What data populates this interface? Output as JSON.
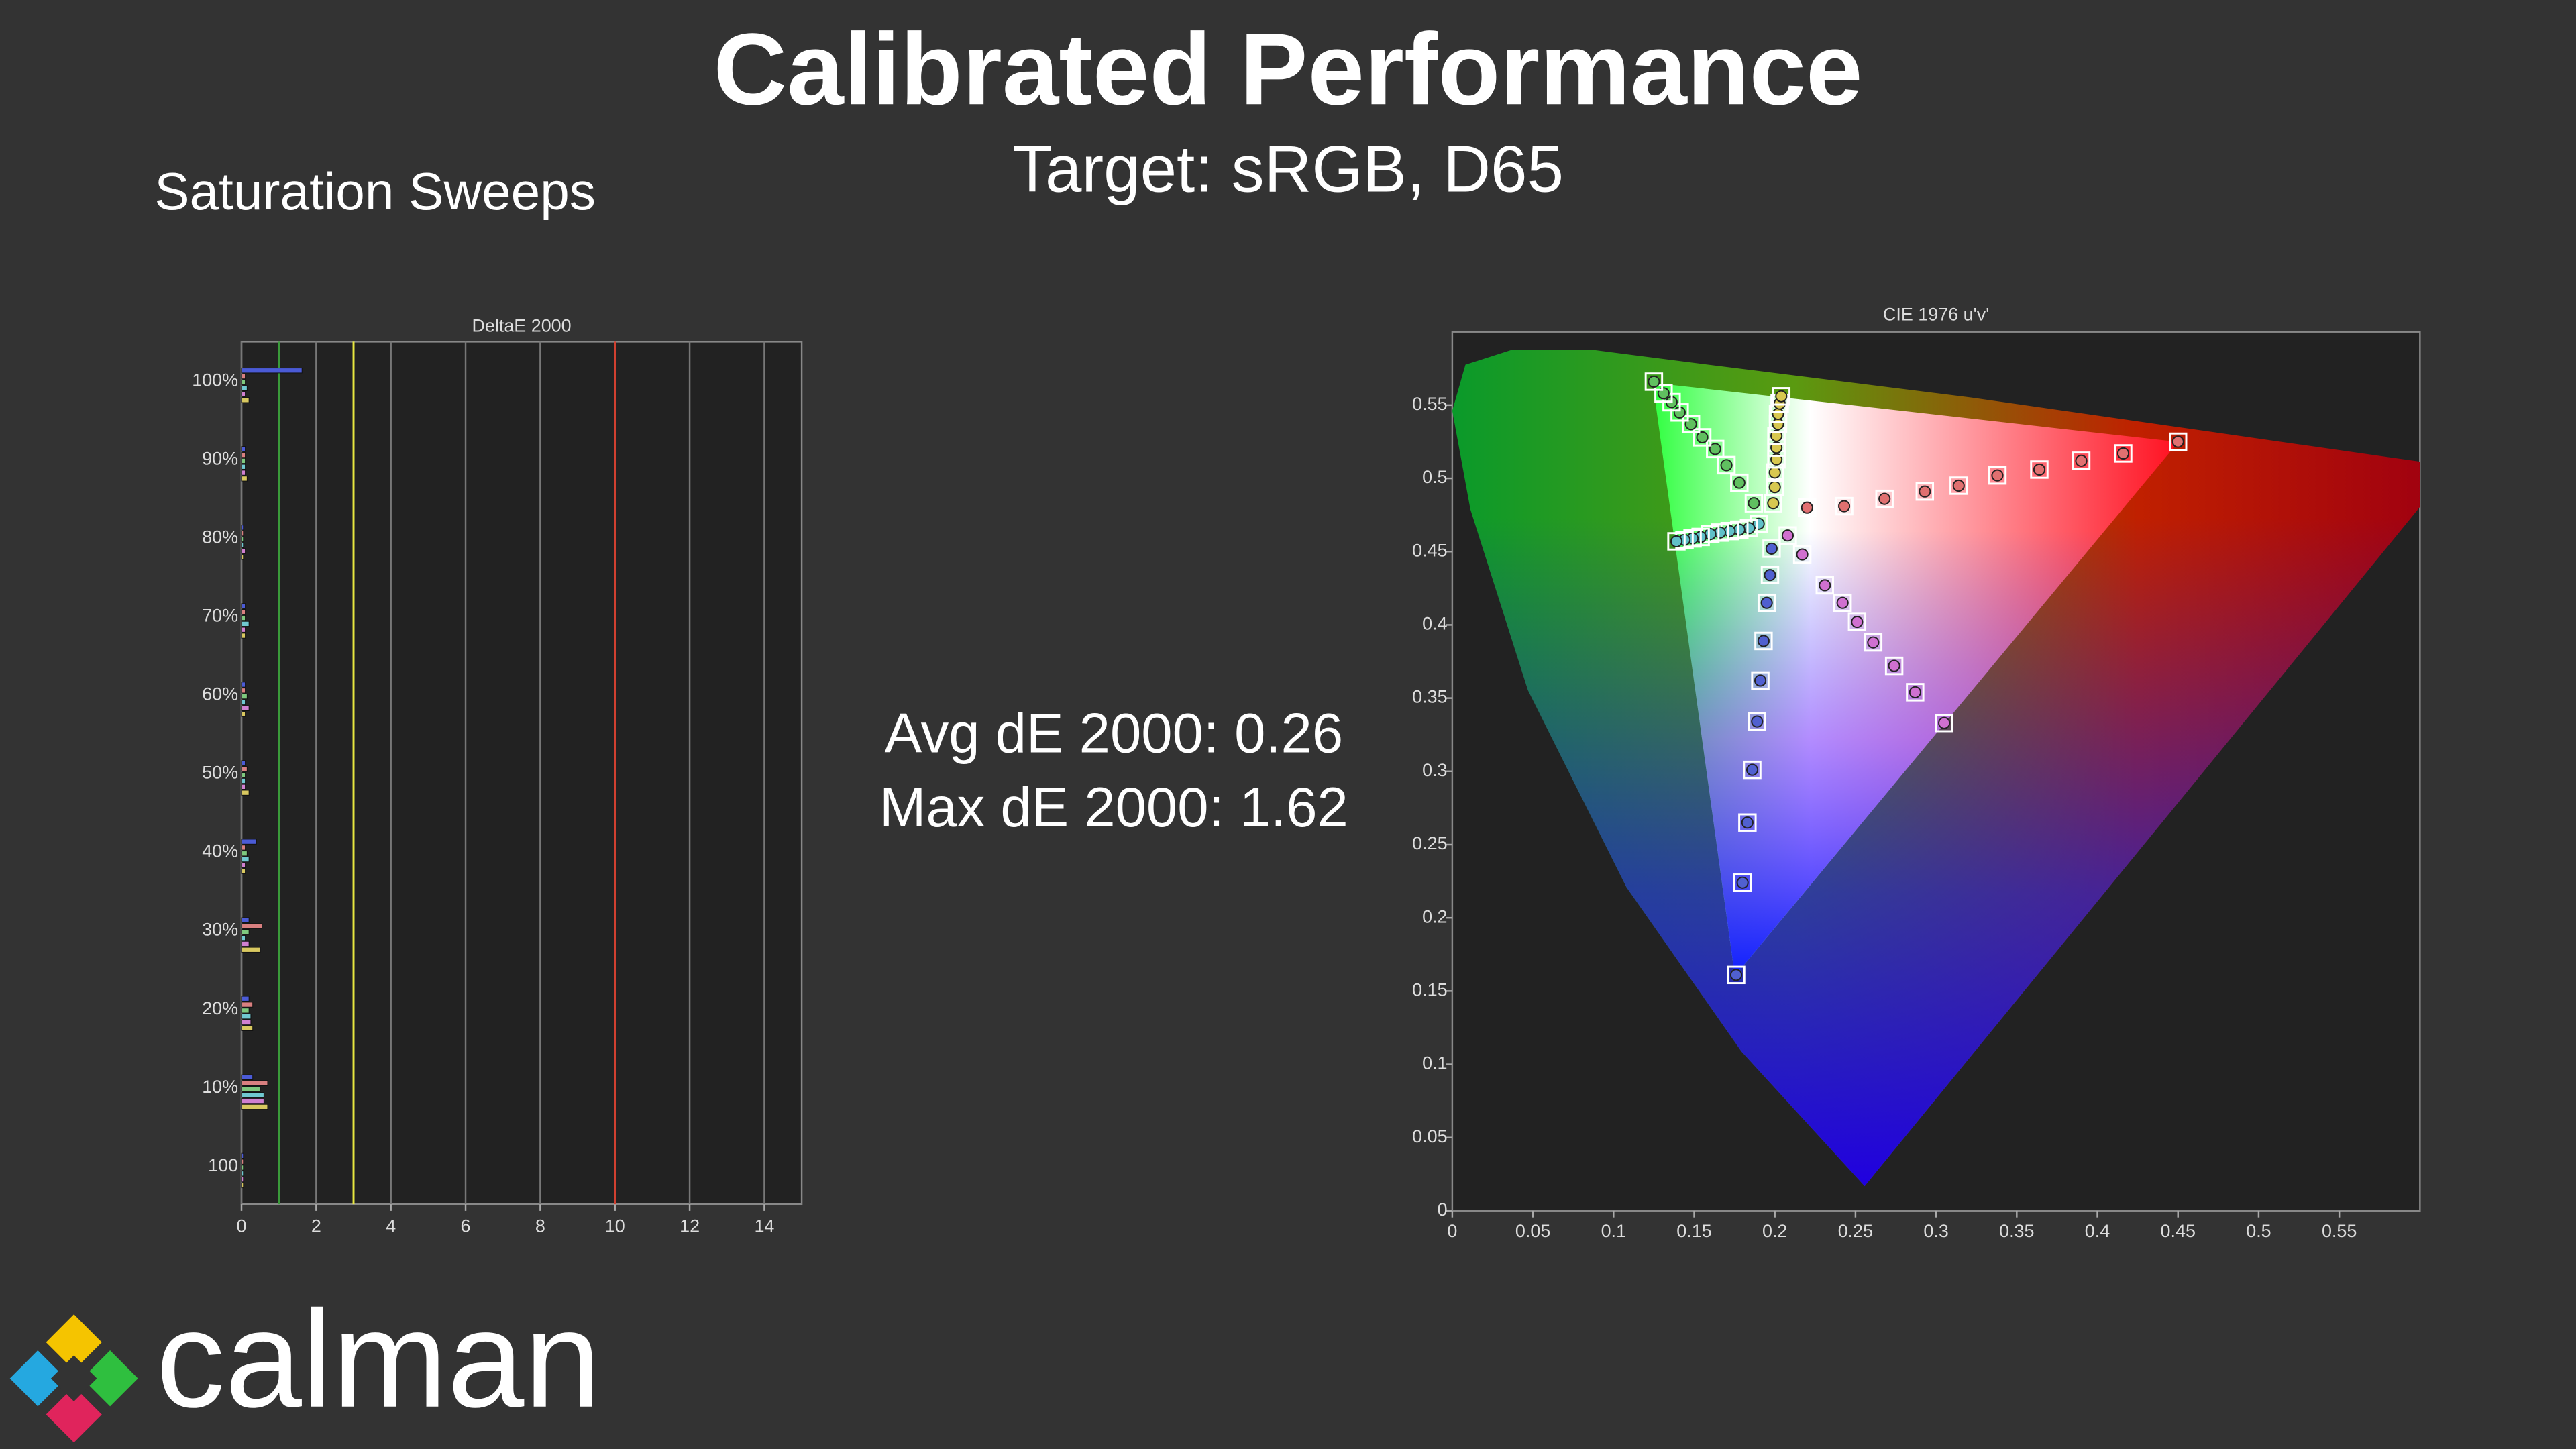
{
  "header": {
    "title": "Calibrated Performance",
    "subtitle": "Target: sRGB, D65",
    "section": "Saturation Sweeps"
  },
  "summary": [
    "Avg dE 2000: 0.26",
    "Max dE 2000: 1.62"
  ],
  "logo": "calman",
  "chart_data": [
    {
      "type": "hbar",
      "title": "DeltaE 2000",
      "categories": [
        "100%",
        "90%",
        "80%",
        "70%",
        "60%",
        "50%",
        "40%",
        "30%",
        "20%",
        "10%",
        "100"
      ],
      "series": [
        {
          "color": "#4b5bd6",
          "values": [
            1.62,
            0.1,
            0.05,
            0.1,
            0.1,
            0.1,
            0.4,
            0.2,
            0.2,
            0.3,
            0.05
          ]
        },
        {
          "color": "#d98080",
          "values": [
            0.1,
            0.1,
            0.05,
            0.1,
            0.1,
            0.15,
            0.1,
            0.55,
            0.3,
            0.7,
            0.05
          ]
        },
        {
          "color": "#7ec87e",
          "values": [
            0.1,
            0.1,
            0.05,
            0.1,
            0.15,
            0.1,
            0.15,
            0.2,
            0.2,
            0.5,
            0.05
          ]
        },
        {
          "color": "#70c8d0",
          "values": [
            0.15,
            0.1,
            0.05,
            0.2,
            0.1,
            0.1,
            0.2,
            0.1,
            0.25,
            0.6,
            0.05
          ]
        },
        {
          "color": "#d080d0",
          "values": [
            0.1,
            0.1,
            0.1,
            0.1,
            0.2,
            0.1,
            0.1,
            0.2,
            0.25,
            0.6,
            0.05
          ]
        },
        {
          "color": "#d8c860",
          "values": [
            0.2,
            0.15,
            0.05,
            0.1,
            0.1,
            0.2,
            0.1,
            0.5,
            0.3,
            0.7,
            0.05
          ]
        }
      ],
      "xlim": [
        0,
        15
      ],
      "xticks": [
        0,
        2,
        4,
        6,
        8,
        10,
        12,
        14
      ],
      "grid": true,
      "reference_lines": [
        {
          "value": 1,
          "color": "#3a9a3a"
        },
        {
          "value": 3,
          "color": "#e8e840"
        },
        {
          "value": 10,
          "color": "#d04030"
        }
      ]
    },
    {
      "type": "scatter",
      "title": "CIE 1976 u'v'",
      "xlim": [
        0,
        0.6
      ],
      "ylim": [
        0,
        0.6
      ],
      "xticks": [
        0,
        0.05,
        0.1,
        0.15,
        0.2,
        0.25,
        0.3,
        0.35,
        0.4,
        0.45,
        0.5,
        0.55
      ],
      "yticks": [
        0,
        0.05,
        0.1,
        0.15,
        0.2,
        0.25,
        0.3,
        0.35,
        0.4,
        0.45,
        0.5,
        0.55
      ],
      "series": [
        {
          "color": "#e07070",
          "x": [
            0.22,
            0.243,
            0.268,
            0.293,
            0.314,
            0.338,
            0.364,
            0.39,
            0.416,
            0.45
          ],
          "y": [
            0.48,
            0.481,
            0.486,
            0.491,
            0.495,
            0.502,
            0.506,
            0.512,
            0.517,
            0.525
          ]
        },
        {
          "color": "#60c060",
          "x": [
            0.187,
            0.178,
            0.17,
            0.163,
            0.155,
            0.148,
            0.141,
            0.136,
            0.131,
            0.125
          ],
          "y": [
            0.483,
            0.497,
            0.509,
            0.52,
            0.528,
            0.537,
            0.545,
            0.552,
            0.558,
            0.566
          ]
        },
        {
          "color": "#5060d0",
          "x": [
            0.198,
            0.197,
            0.195,
            0.193,
            0.191,
            0.189,
            0.186,
            0.183,
            0.18,
            0.176
          ],
          "y": [
            0.452,
            0.434,
            0.415,
            0.389,
            0.362,
            0.334,
            0.301,
            0.265,
            0.224,
            0.161
          ]
        },
        {
          "color": "#60c0c8",
          "x": [
            0.19,
            0.184,
            0.178,
            0.172,
            0.166,
            0.16,
            0.154,
            0.149,
            0.144,
            0.139
          ],
          "y": [
            0.469,
            0.466,
            0.465,
            0.464,
            0.463,
            0.462,
            0.46,
            0.459,
            0.458,
            0.457
          ]
        },
        {
          "color": "#d070d0",
          "x": [
            0.208,
            0.217,
            0.231,
            0.242,
            0.251,
            0.261,
            0.274,
            0.287,
            0.305
          ],
          "y": [
            0.461,
            0.448,
            0.427,
            0.415,
            0.402,
            0.388,
            0.372,
            0.354,
            0.333
          ]
        },
        {
          "color": "#d8c850",
          "x": [
            0.199,
            0.2,
            0.2,
            0.201,
            0.201,
            0.201,
            0.202,
            0.202,
            0.203,
            0.204
          ],
          "y": [
            0.483,
            0.494,
            0.504,
            0.513,
            0.521,
            0.529,
            0.537,
            0.544,
            0.551,
            0.556
          ]
        }
      ]
    }
  ]
}
